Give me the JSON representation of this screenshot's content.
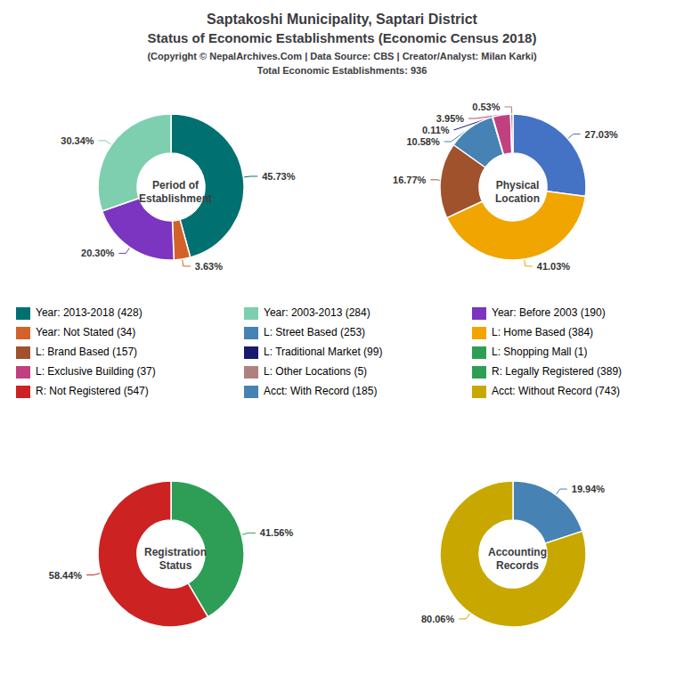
{
  "title": "Saptakoshi Municipality, Saptari District",
  "subtitle": "Status of Economic Establishments (Economic Census 2018)",
  "annotations": [
    "(Copyright © NepalArchives.Com | Data Source: CBS | Creator/Analyst: Milan Karki)",
    "Total Economic Establishments: 936"
  ],
  "chart_data": [
    {
      "type": "pie",
      "title": "Period of\nEstablishment",
      "values": [
        45.73,
        3.63,
        20.3,
        30.34
      ],
      "value_labels": [
        "45.73%",
        "3.63%",
        "20.30%",
        "30.34%"
      ],
      "colors": [
        "#007070",
        "#D2622A",
        "#7B35C0",
        "#7DCFB0"
      ],
      "data_labels": true
    },
    {
      "type": "pie",
      "title": "Physical\nLocation",
      "values": [
        27.03,
        41.03,
        16.77,
        10.58,
        0.11,
        3.95,
        0.53
      ],
      "value_labels": [
        "27.03%",
        "41.03%",
        "16.77%",
        "10.58%",
        "0.11%",
        "3.95%",
        "0.53%"
      ],
      "colors": [
        "#4472C4",
        "#F0A500",
        "#A0522D",
        "#4682B4",
        "#191970",
        "#C04080",
        "#B08080"
      ],
      "data_labels": true
    },
    {
      "type": "pie",
      "title": "Registration\nStatus",
      "values": [
        41.56,
        58.44
      ],
      "value_labels": [
        "41.56%",
        "58.44%"
      ],
      "colors": [
        "#2E9E57",
        "#CC2222"
      ],
      "data_labels": true
    },
    {
      "type": "pie",
      "title": "Accounting\nRecords",
      "values": [
        19.94,
        80.06
      ],
      "value_labels": [
        "19.94%",
        "80.06%"
      ],
      "colors": [
        "#4682B4",
        "#C8A800"
      ],
      "data_labels": true
    }
  ],
  "legend_items": [
    {
      "name": "Year: 2013-2018 (428)",
      "color": "#007070"
    },
    {
      "name": "Year: 2003-2013 (284)",
      "color": "#7DCFB0"
    },
    {
      "name": "Year: Before 2003 (190)",
      "color": "#7B35C0"
    },
    {
      "name": "Year: Not Stated (34)",
      "color": "#D2622A"
    },
    {
      "name": "L: Street Based (253)",
      "color": "#4682B4"
    },
    {
      "name": "L: Home Based (384)",
      "color": "#F0A500"
    },
    {
      "name": "L: Brand Based (157)",
      "color": "#A0522D"
    },
    {
      "name": "L: Traditional Market (99)",
      "color": "#191970"
    },
    {
      "name": "L: Shopping Mall (1)",
      "color": "#2E9E57"
    },
    {
      "name": "L: Exclusive Building (37)",
      "color": "#C04080"
    },
    {
      "name": "L: Other Locations (5)",
      "color": "#B08080"
    },
    {
      "name": "R: Legally Registered (389)",
      "color": "#2E9E57"
    },
    {
      "name": "R: Not Registered (547)",
      "color": "#CC2222"
    },
    {
      "name": "Acct: With Record (185)",
      "color": "#4682B4"
    },
    {
      "name": "Acct: Without Record (743)",
      "color": "#C8A800"
    }
  ]
}
